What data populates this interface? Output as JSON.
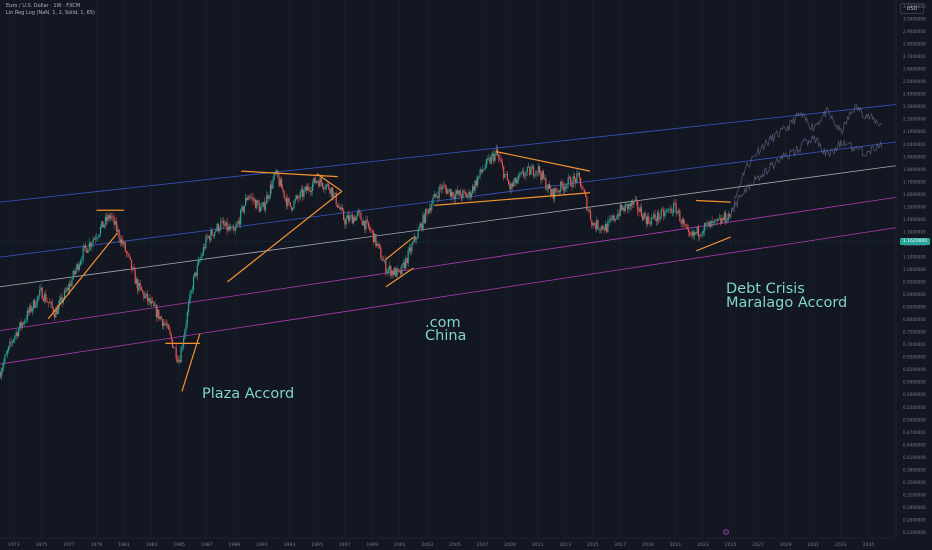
{
  "header": {
    "symbol_line": "Euro / U.S. Dollar · 1W · FXCM",
    "indicator_line": "Lin Reg Log (NaN, 1, 2, Solid, 1, 65)",
    "currency": "USD"
  },
  "current_price_label": "1.1620000",
  "annotations": {
    "plaza": "Plaza Accord",
    "dotcom_1": ".com",
    "dotcom_2": "China",
    "debt_1": "Debt Crisis",
    "debt_2": "Maralago Accord"
  },
  "colors": {
    "background": "#131722",
    "channel_upper": "#3d5bd6",
    "channel_mid": "#b8bcc4",
    "channel_lower": "#c23fc0",
    "trendline": "#f5922f",
    "annotation": "#7fd6c9",
    "up_candle": "#26a69a",
    "down_candle": "#ef5350",
    "projection": "#8a7fb0"
  },
  "chart_data": {
    "type": "line",
    "instrument": "Euro / U.S. Dollar",
    "timeframe": "1W",
    "x_ticks": [
      "1973",
      "1975",
      "1977",
      "1979",
      "1981",
      "1983",
      "1985",
      "1987",
      "1989",
      "1991",
      "1993",
      "1995",
      "1997",
      "1999",
      "2001",
      "2003",
      "2005",
      "2007",
      "2009",
      "2011",
      "2013",
      "2015",
      "2017",
      "2019",
      "2021",
      "2023",
      "2025",
      "2027",
      "2029",
      "2031",
      "2033",
      "2035"
    ],
    "y_ticks": [
      "3.1000000",
      "3.0000000",
      "2.9000000",
      "2.8000000",
      "2.7000000",
      "2.6000000",
      "2.5000000",
      "2.4000000",
      "2.3000000",
      "2.2000000",
      "2.1000000",
      "2.0000000",
      "1.9000000",
      "1.8000000",
      "1.7000000",
      "1.6000000",
      "1.5000000",
      "1.4000000",
      "1.3000000",
      "1.2000000",
      "1.1000000",
      "1.0000000",
      "0.9500000",
      "0.9000000",
      "0.8500000",
      "0.8000000",
      "0.7500000",
      "0.7000000",
      "0.6500000",
      "0.6200000",
      "0.5900000",
      "0.5600000",
      "0.5300000",
      "0.5000000",
      "0.4700000",
      "0.4400000",
      "0.4100000",
      "0.3800000",
      "0.3500000",
      "0.3200000",
      "0.2900000",
      "0.2600000",
      "0.2300000"
    ],
    "x_range": [
      1972,
      2037
    ],
    "scale": "log",
    "series": [
      {
        "values": [
          [
            1972,
            0.52
          ],
          [
            1973,
            0.62
          ],
          [
            1975,
            0.78
          ],
          [
            1976,
            0.7
          ],
          [
            1977,
            0.8
          ],
          [
            1978,
            0.95
          ],
          [
            1980,
            1.15
          ],
          [
            1981,
            0.98
          ],
          [
            1982,
            0.8
          ],
          [
            1984,
            0.66
          ],
          [
            1985,
            0.55
          ],
          [
            1986,
            0.82
          ],
          [
            1987,
            1.02
          ],
          [
            1988,
            1.1
          ],
          [
            1989,
            1.05
          ],
          [
            1990,
            1.28
          ],
          [
            1991,
            1.18
          ],
          [
            1992,
            1.42
          ],
          [
            1993,
            1.2
          ],
          [
            1995,
            1.38
          ],
          [
            1996,
            1.32
          ],
          [
            1997,
            1.12
          ],
          [
            1998,
            1.15
          ],
          [
            1999,
            1.05
          ],
          [
            2000,
            0.88
          ],
          [
            2001,
            0.85
          ],
          [
            2002,
            1.0
          ],
          [
            2003,
            1.18
          ],
          [
            2004,
            1.33
          ],
          [
            2005,
            1.28
          ],
          [
            2006,
            1.27
          ],
          [
            2007,
            1.45
          ],
          [
            2008,
            1.58
          ],
          [
            2009,
            1.32
          ],
          [
            2010,
            1.42
          ],
          [
            2011,
            1.46
          ],
          [
            2012,
            1.28
          ],
          [
            2013,
            1.35
          ],
          [
            2014,
            1.39
          ],
          [
            2015,
            1.1
          ],
          [
            2016,
            1.08
          ],
          [
            2017,
            1.18
          ],
          [
            2018,
            1.22
          ],
          [
            2019,
            1.12
          ],
          [
            2020,
            1.15
          ],
          [
            2021,
            1.2
          ],
          [
            2022,
            1.02
          ],
          [
            2023,
            1.08
          ],
          [
            2024,
            1.1
          ],
          [
            2025,
            1.16
          ]
        ]
      },
      {
        "values": [
          [
            2025,
            1.16
          ],
          [
            2026,
            1.45
          ],
          [
            2027,
            1.6
          ],
          [
            2028,
            1.7
          ],
          [
            2029,
            1.78
          ],
          [
            2030,
            1.92
          ],
          [
            2031,
            1.8
          ],
          [
            2032,
            1.95
          ],
          [
            2033,
            1.75
          ],
          [
            2034,
            2.0
          ],
          [
            2035,
            1.9
          ],
          [
            2036,
            1.82
          ]
        ]
      },
      {
        "values": [
          [
            2025,
            1.16
          ],
          [
            2026,
            1.3
          ],
          [
            2027,
            1.4
          ],
          [
            2028,
            1.48
          ],
          [
            2029,
            1.55
          ],
          [
            2030,
            1.62
          ],
          [
            2031,
            1.72
          ],
          [
            2032,
            1.56
          ],
          [
            2033,
            1.66
          ],
          [
            2034,
            1.62
          ],
          [
            2035,
            1.58
          ],
          [
            2036,
            1.64
          ]
        ]
      }
    ],
    "regression_channel": {
      "upper": [
        [
          1972,
          1.23
        ],
        [
          2037,
          2.02
        ]
      ],
      "upper_mid": [
        [
          1972,
          0.93
        ],
        [
          2037,
          1.67
        ]
      ],
      "mid": [
        [
          1972,
          0.8
        ],
        [
          2037,
          1.48
        ]
      ],
      "lower_mid": [
        [
          1972,
          0.64
        ],
        [
          2037,
          1.26
        ]
      ],
      "lower": [
        [
          1972,
          0.54
        ],
        [
          2037,
          1.08
        ]
      ]
    },
    "trendlines": [
      [
        [
          1975.5,
          0.68
        ],
        [
          1980.5,
          1.05
        ]
      ],
      [
        [
          1979,
          1.18
        ],
        [
          1981,
          1.18
        ]
      ],
      [
        [
          1985.2,
          0.47
        ],
        [
          1986.5,
          0.63
        ]
      ],
      [
        [
          1984,
          0.6
        ],
        [
          1986.5,
          0.6
        ]
      ],
      [
        [
          1988.5,
          0.82
        ],
        [
          1996.8,
          1.3
        ]
      ],
      [
        [
          1989.5,
          1.44
        ],
        [
          1996.5,
          1.4
        ]
      ],
      [
        [
          1995,
          1.42
        ],
        [
          1996.8,
          1.3
        ]
      ],
      [
        [
          2000,
          0.92
        ],
        [
          2002,
          1.03
        ]
      ],
      [
        [
          2000,
          0.8
        ],
        [
          2002,
          0.88
        ]
      ],
      [
        [
          2003.5,
          1.21
        ],
        [
          2014.8,
          1.29
        ]
      ],
      [
        [
          2008,
          1.59
        ],
        [
          2014.8,
          1.44
        ]
      ],
      [
        [
          2022.5,
          0.96
        ],
        [
          2025,
          1.03
        ]
      ],
      [
        [
          2022.5,
          1.24
        ],
        [
          2025,
          1.23
        ]
      ]
    ]
  }
}
